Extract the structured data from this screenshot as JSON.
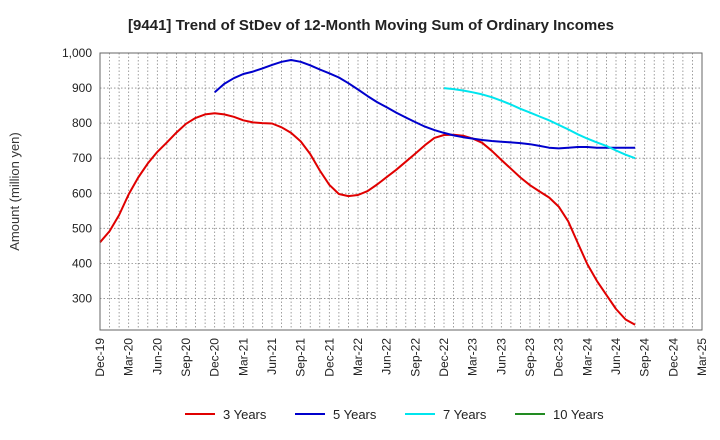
{
  "chart_data": {
    "type": "line",
    "title": "[9441]  Trend of StDev of 12-Month Moving Sum of Ordinary Incomes",
    "ylabel": "Amount (million yen)",
    "xlabel": "",
    "ylim": [
      210,
      1000
    ],
    "yticks": [
      300,
      400,
      500,
      600,
      700,
      800,
      900,
      1000
    ],
    "ytick_labels": [
      "300",
      "400",
      "500",
      "600",
      "700",
      "800",
      "900",
      "1,000"
    ],
    "x_ticks": [
      "Dec-19",
      "Mar-20",
      "Jun-20",
      "Sep-20",
      "Dec-20",
      "Mar-21",
      "Jun-21",
      "Sep-21",
      "Dec-21",
      "Mar-22",
      "Jun-22",
      "Sep-22",
      "Dec-22",
      "Mar-23",
      "Jun-23",
      "Sep-23",
      "Dec-23",
      "Mar-24",
      "Jun-24",
      "Sep-24",
      "Dec-24",
      "Mar-25"
    ],
    "grid": true,
    "legend_position": "bottom",
    "series": [
      {
        "name": "3 Years",
        "color": "#e00000",
        "values": [
          460,
          492,
          538,
          597,
          645,
          685,
          718,
          745,
          773,
          798,
          815,
          825,
          828,
          825,
          818,
          808,
          802,
          800,
          799,
          788,
          772,
          748,
          712,
          665,
          624,
          598,
          592,
          595,
          606,
          625,
          646,
          667,
          690,
          713,
          737,
          758,
          766,
          767,
          764,
          756,
          744,
          721,
          695,
          670,
          645,
          623,
          605,
          588,
          562,
          520,
          458,
          398,
          350,
          310,
          270,
          240,
          225
        ]
      },
      {
        "name": "5 Years",
        "color": "#0000cc",
        "values": [
          null,
          null,
          null,
          null,
          null,
          null,
          null,
          null,
          null,
          null,
          null,
          null,
          888,
          912,
          928,
          940,
          947,
          956,
          966,
          975,
          980,
          975,
          965,
          953,
          942,
          930,
          914,
          896,
          877,
          860,
          845,
          830,
          816,
          803,
          790,
          780,
          772,
          765,
          760,
          756,
          752,
          749,
          747,
          745,
          743,
          740,
          735,
          730,
          728,
          730,
          732,
          732,
          730,
          730,
          730,
          730,
          730
        ]
      },
      {
        "name": "7 Years",
        "color": "#00e5ee",
        "values": [
          null,
          null,
          null,
          null,
          null,
          null,
          null,
          null,
          null,
          null,
          null,
          null,
          null,
          null,
          null,
          null,
          null,
          null,
          null,
          null,
          null,
          null,
          null,
          null,
          null,
          null,
          null,
          null,
          null,
          null,
          null,
          null,
          null,
          null,
          null,
          null,
          900,
          897,
          893,
          888,
          882,
          874,
          864,
          853,
          841,
          830,
          819,
          808,
          795,
          782,
          768,
          756,
          745,
          735,
          722,
          710,
          700
        ]
      },
      {
        "name": "10 Years",
        "color": "#228b22",
        "values": []
      }
    ]
  }
}
